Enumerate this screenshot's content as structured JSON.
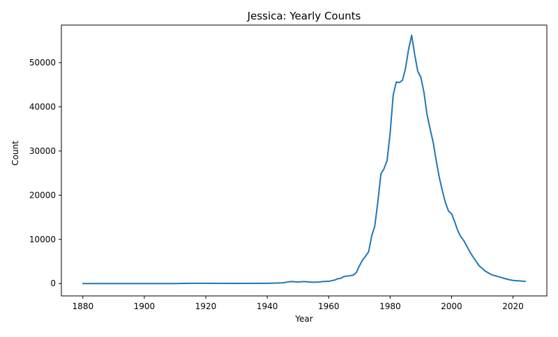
{
  "chart_data": {
    "type": "line",
    "title": "Jessica: Yearly Counts",
    "xlabel": "Year",
    "ylabel": "Count",
    "xlim": [
      1873,
      2031
    ],
    "ylim": [
      -2800,
      58500
    ],
    "xticks": [
      1880,
      1900,
      1920,
      1940,
      1960,
      1980,
      2000,
      2020
    ],
    "yticks": [
      0,
      10000,
      20000,
      30000,
      40000,
      50000
    ],
    "grid": false,
    "legend": "none",
    "line_color": "#1f77b4",
    "series": [
      {
        "x": [
          1880,
          1890,
          1900,
          1910,
          1915,
          1920,
          1930,
          1940,
          1942,
          1945,
          1947,
          1948,
          1950,
          1952,
          1953,
          1955,
          1957,
          1958,
          1960,
          1962,
          1963,
          1964,
          1965,
          1966,
          1967,
          1968,
          1969,
          1970,
          1971,
          1972,
          1973,
          1974,
          1975,
          1976,
          1977,
          1978,
          1979,
          1980,
          1981,
          1982,
          1983,
          1984,
          1985,
          1986,
          1987,
          1988,
          1989,
          1990,
          1991,
          1992,
          1993,
          1994,
          1995,
          1996,
          1997,
          1998,
          1999,
          2000,
          2001,
          2002,
          2003,
          2004,
          2005,
          2006,
          2007,
          2008,
          2009,
          2010,
          2011,
          2012,
          2013,
          2014,
          2015,
          2016,
          2017,
          2018,
          2019,
          2020,
          2021,
          2022,
          2023,
          2024
        ],
        "y": [
          0,
          0,
          0,
          0,
          50,
          50,
          30,
          60,
          100,
          150,
          400,
          450,
          350,
          450,
          400,
          300,
          350,
          450,
          500,
          800,
          1100,
          1200,
          1600,
          1700,
          1800,
          1900,
          2500,
          4000,
          5300,
          6200,
          7200,
          10800,
          13000,
          18500,
          24800,
          26000,
          27800,
          34000,
          42700,
          45600,
          45500,
          46000,
          48700,
          53000,
          56200,
          51800,
          48000,
          46700,
          43300,
          38300,
          35000,
          32000,
          27800,
          24000,
          21000,
          18300,
          16400,
          15800,
          14000,
          12000,
          10600,
          9700,
          8400,
          7100,
          6000,
          5000,
          4000,
          3400,
          2800,
          2400,
          2000,
          1800,
          1600,
          1400,
          1200,
          1000,
          850,
          700,
          650,
          600,
          550,
          500
        ]
      }
    ]
  }
}
